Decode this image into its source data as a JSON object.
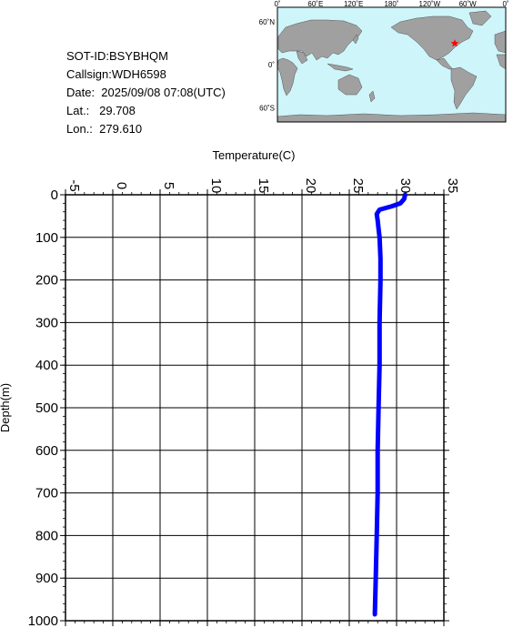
{
  "info": {
    "sot_id": "SOT-ID:BSYBHQM",
    "callsign": "Callsign:WDH6598",
    "date": "Date:  2025/09/08 07:08(UTC)",
    "lat": "Lat.:   29.708",
    "lon": "Lon.:  279.610"
  },
  "map": {
    "top_labels": [
      "0˚",
      "60˚E",
      "120˚E",
      "180˚",
      "120˚W",
      "60˚W",
      "0˚"
    ],
    "left_labels": [
      "60˚N",
      "0˚",
      "60˚S"
    ],
    "ocean_color": "#cdf5fa",
    "land_color": "#a0a0a0",
    "marker_color": "#ff0000",
    "marker_lat": 29.708,
    "marker_lon": 279.61
  },
  "chart_data": {
    "type": "line",
    "title": "",
    "xlabel": "Temperature(C)",
    "ylabel": "Depth(m)",
    "xlim": [
      -5,
      35
    ],
    "ylim": [
      0,
      1000
    ],
    "x_ticks": [
      "-5",
      "0",
      "5",
      "10",
      "15",
      "20",
      "25",
      "30",
      "35"
    ],
    "y_ticks": [
      "0",
      "100",
      "200",
      "300",
      "400",
      "500",
      "600",
      "700",
      "800",
      "900",
      "1000"
    ],
    "grid": true,
    "line_color": "#0000ff",
    "series": [
      {
        "x": [
          30.9,
          30.8,
          30.4,
          29.5,
          28.2,
          27.9,
          28.0,
          28.1,
          28.2,
          28.3,
          28.3,
          28.2,
          28.2,
          28.1,
          28.0,
          28.0,
          27.9,
          27.8,
          27.7
        ],
        "y": [
          0,
          10,
          20,
          27,
          35,
          45,
          60,
          80,
          100,
          150,
          200,
          300,
          400,
          500,
          600,
          700,
          800,
          900,
          985
        ]
      }
    ]
  }
}
